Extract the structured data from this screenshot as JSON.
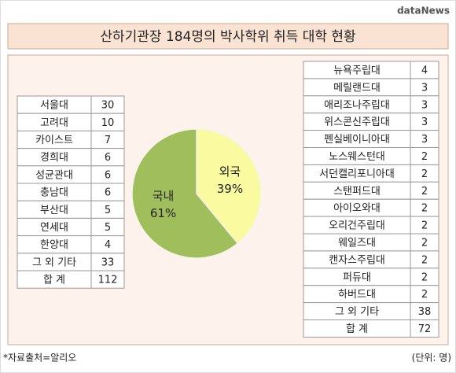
{
  "header": {
    "title": "산하기관장 184명의 박사학위 취득 대학 현황",
    "logo": "dataNews"
  },
  "chart_data": {
    "type": "pie",
    "categories": [
      "외국",
      "국내"
    ],
    "values": [
      39,
      61
    ],
    "value_labels": [
      "39%",
      "61%"
    ],
    "colors": [
      "#fafaa0",
      "#a0bf5c"
    ]
  },
  "domestic_table": {
    "rows": [
      [
        "서울대",
        30
      ],
      [
        "고려대",
        10
      ],
      [
        "카이스트",
        7
      ],
      [
        "경희대",
        6
      ],
      [
        "성균관대",
        6
      ],
      [
        "충남대",
        6
      ],
      [
        "부산대",
        5
      ],
      [
        "연세대",
        5
      ],
      [
        "한양대",
        4
      ],
      [
        "그 외 기타",
        33
      ]
    ],
    "total": {
      "label": "합 계",
      "value": 112
    }
  },
  "foreign_table": {
    "rows": [
      [
        "뉴욕주립대",
        4
      ],
      [
        "메릴랜드대",
        3
      ],
      [
        "애리조나주립대",
        3
      ],
      [
        "위스콘신주립대",
        3
      ],
      [
        "펜실베이니아대",
        3
      ],
      [
        "노스웨스턴대",
        2
      ],
      [
        "서던캘리포니아대",
        2
      ],
      [
        "스탠퍼드대",
        2
      ],
      [
        "아이오와대",
        2
      ],
      [
        "오리건주립대",
        2
      ],
      [
        "웨일즈대",
        2
      ],
      [
        "캔자스주립대",
        2
      ],
      [
        "퍼듀대",
        2
      ],
      [
        "하버드대",
        2
      ],
      [
        "그 외 기타",
        38
      ]
    ],
    "total": {
      "label": "합 계",
      "value": 72
    }
  },
  "footer": {
    "source": "*자료출처=알리오",
    "unit": "(단위: 명)"
  }
}
